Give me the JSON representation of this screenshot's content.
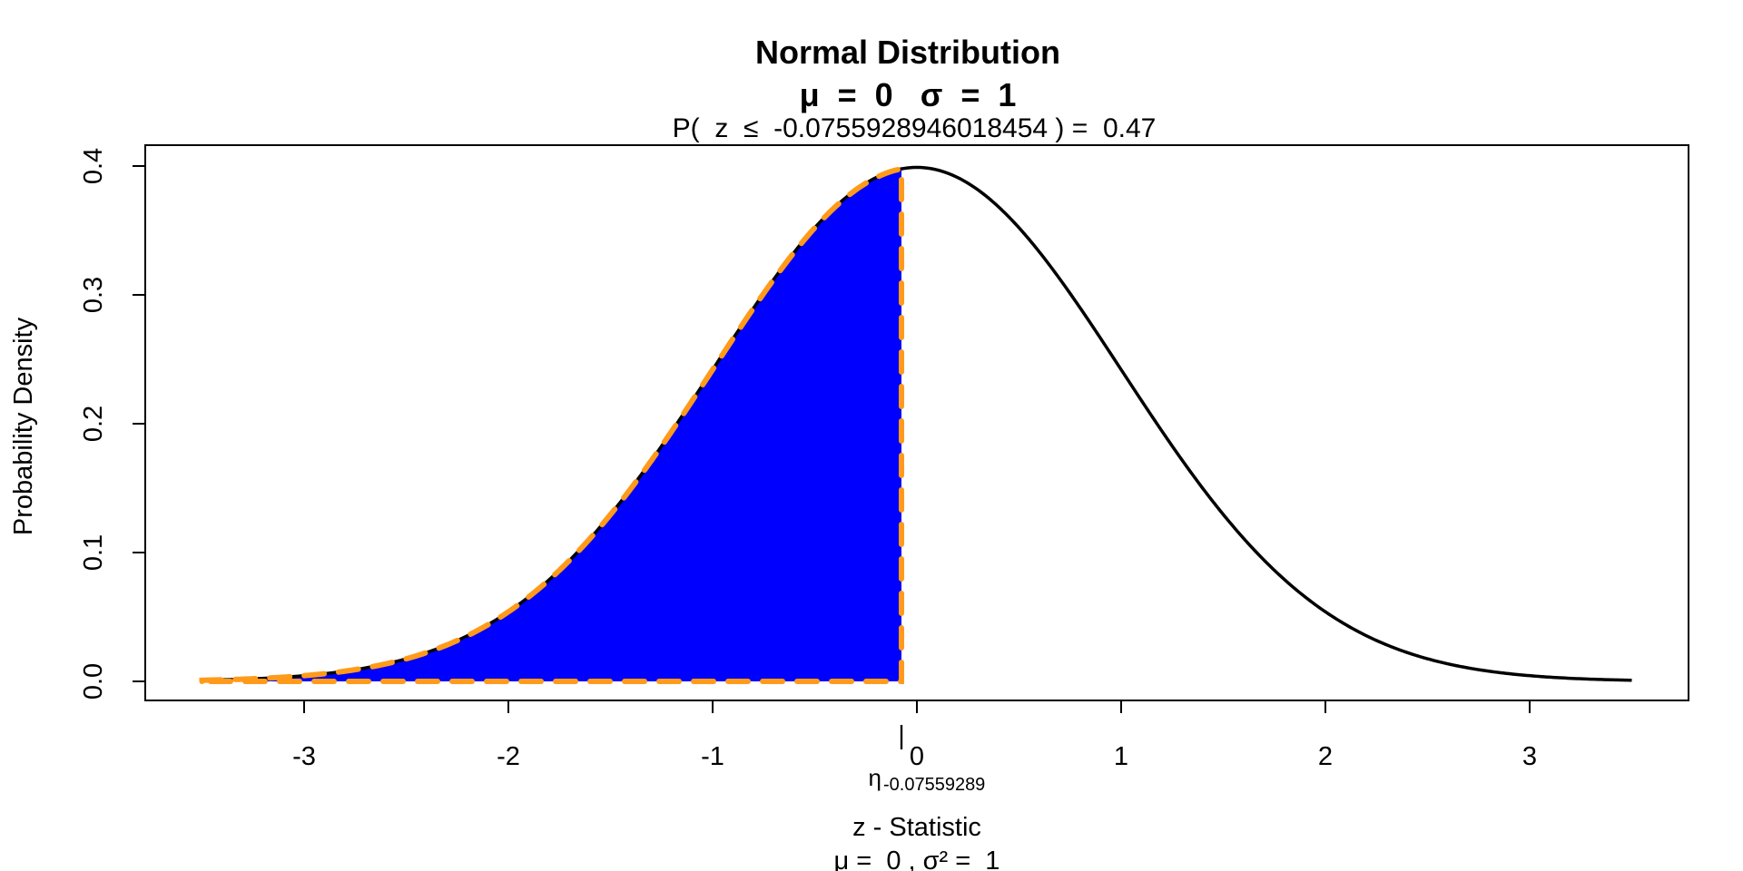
{
  "chart_data": {
    "type": "area",
    "title": "Normal Distribution",
    "title_line2": "μ  =  0   σ  =  1",
    "subtitle": "P(  z  ≤  -0.0755928946018454 ) =  0.47",
    "xlabel": "z - Statistic",
    "xlabel_line2": "μ =  0 , σ² =  1",
    "ylabel": "Probability Density",
    "xlim": [
      -3.5,
      3.5
    ],
    "ylim": [
      0,
      0.4
    ],
    "x_ticks": [
      -3,
      -2,
      -1,
      0,
      1,
      2,
      3
    ],
    "x_tick_labels": [
      "-3",
      "-2",
      "-1",
      "0",
      "1",
      "2",
      "3"
    ],
    "y_ticks": [
      0.0,
      0.1,
      0.2,
      0.3,
      0.4
    ],
    "y_tick_labels": [
      "0.0",
      "0.1",
      "0.2",
      "0.3",
      "0.4"
    ],
    "mean": 0,
    "sd": 1,
    "critical_value": -0.0755928946018454,
    "probability": 0.47,
    "marker_symbol": "η",
    "marker_label": "-0.07559289",
    "marker_tick": "|",
    "series": [
      {
        "curve": "density",
        "x": [
          -3.5,
          -3.0,
          -2.5,
          -2.0,
          -1.5,
          -1.0,
          -0.5,
          0.0,
          0.5,
          1.0,
          1.5,
          2.0,
          2.5,
          3.0,
          3.5
        ],
        "values": [
          0.0009,
          0.0044,
          0.0175,
          0.054,
          0.1295,
          0.242,
          0.3521,
          0.3989,
          0.3521,
          0.242,
          0.1295,
          0.054,
          0.0175,
          0.0044,
          0.0009
        ],
        "color": "#000000"
      },
      {
        "curve": "shaded region",
        "from": -3.5,
        "to": -0.0755928946018454,
        "fill": "#0000ff",
        "outline": "#ff9a1a"
      }
    ],
    "grid": false,
    "legend": "none"
  }
}
